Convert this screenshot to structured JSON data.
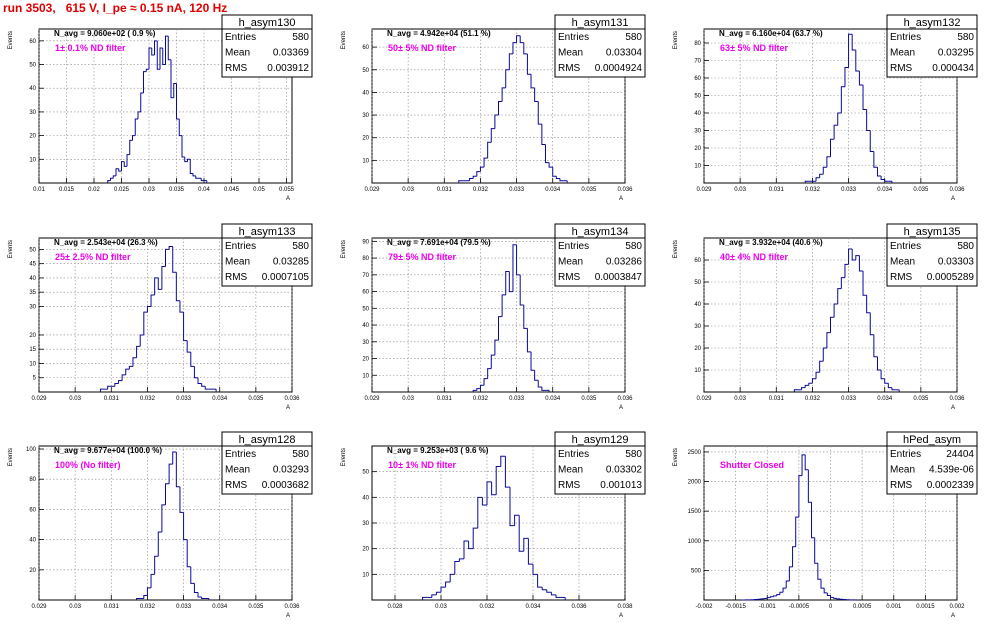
{
  "header": {
    "run_title": "run 3503,   615 V, I_pe ≈ 0.15 nA, 120 Hz"
  },
  "colors": {
    "histogram": "#0a0a9a",
    "filter_label": "#ee00ee",
    "title": "#e00000"
  },
  "chart_data": [
    {
      "type": "bar",
      "name": "h_asym130",
      "n_avg": "N_avg = 9.060e+02 ( 0.9 %)",
      "filter_label": "1± 0.1% ND filter",
      "stats": {
        "entries": "580",
        "mean": "0.03369",
        "rms": "0.003912"
      },
      "ylabel": "Events",
      "xlabel": "A",
      "xlim": [
        0.01,
        0.056
      ],
      "ylim": [
        0,
        65
      ],
      "xticks": [
        "0.01",
        "0.015",
        "0.02",
        "0.025",
        "0.03",
        "0.035",
        "0.04",
        "0.045",
        "0.05",
        "0.055"
      ],
      "yticks": [
        "10",
        "20",
        "30",
        "40",
        "50",
        "60"
      ],
      "bin_edges_start": 0.0225,
      "bin_width": 0.0005,
      "values": [
        1,
        2,
        3,
        6,
        5,
        9,
        7,
        12,
        18,
        20,
        27,
        30,
        38,
        47,
        48,
        57,
        54,
        60,
        48,
        57,
        50,
        62,
        52,
        36,
        42,
        27,
        20,
        11,
        9,
        10,
        4,
        3,
        2,
        2,
        1,
        1
      ]
    },
    {
      "type": "bar",
      "name": "h_asym131",
      "n_avg": "N_avg = 4.942e+04 (51.1 %)",
      "filter_label": "50± 5% ND filter",
      "stats": {
        "entries": "580",
        "mean": "0.03304",
        "rms": "0.0004924"
      },
      "ylabel": "Events",
      "xlabel": "A",
      "xlim": [
        0.029,
        0.036
      ],
      "ylim": [
        0,
        68
      ],
      "xticks": [
        "0.029",
        "0.03",
        "0.031",
        "0.032",
        "0.033",
        "0.034",
        "0.035",
        "0.036"
      ],
      "yticks": [
        "10",
        "20",
        "30",
        "40",
        "50",
        "60"
      ],
      "bin_edges_start": 0.0314,
      "bin_width": 0.0001,
      "values": [
        1,
        1,
        1,
        2,
        3,
        5,
        7,
        11,
        18,
        24,
        30,
        36,
        42,
        50,
        57,
        62,
        65,
        62,
        57,
        48,
        42,
        36,
        26,
        17,
        9,
        7,
        3,
        2,
        1,
        1
      ]
    },
    {
      "type": "bar",
      "name": "h_asym132",
      "n_avg": "N_avg = 6.160e+04 (63.7 %)",
      "filter_label": "63± 5% ND filter",
      "stats": {
        "entries": "580",
        "mean": "0.03295",
        "rms": "0.000434"
      },
      "ylabel": "Events",
      "xlabel": "A",
      "xlim": [
        0.029,
        0.036
      ],
      "ylim": [
        0,
        88
      ],
      "xticks": [
        "0.029",
        "0.03",
        "0.031",
        "0.032",
        "0.033",
        "0.034",
        "0.035",
        "0.036"
      ],
      "yticks": [
        "10",
        "20",
        "30",
        "40",
        "50",
        "60",
        "70",
        "80"
      ],
      "bin_edges_start": 0.0318,
      "bin_width": 0.0001,
      "values": [
        1,
        1,
        1,
        3,
        5,
        9,
        15,
        25,
        33,
        40,
        55,
        66,
        85,
        76,
        64,
        56,
        42,
        30,
        18,
        9,
        4,
        2,
        1,
        1
      ]
    },
    {
      "type": "bar",
      "name": "h_asym133",
      "n_avg": "N_avg = 2.543e+04 (26.3 %)",
      "filter_label": "25± 2.5% ND filter",
      "stats": {
        "entries": "580",
        "mean": "0.03285",
        "rms": "0.0007105"
      },
      "ylabel": "Events",
      "xlabel": "A",
      "xlim": [
        0.029,
        0.036
      ],
      "ylim": [
        0,
        54
      ],
      "xticks": [
        "0.029",
        "0.03",
        "0.031",
        "0.032",
        "0.033",
        "0.034",
        "0.035",
        "0.036"
      ],
      "yticks": [
        "5",
        "10",
        "15",
        "20",
        "30",
        "35",
        "40",
        "45",
        "50"
      ],
      "bin_edges_start": 0.0307,
      "bin_width": 0.0001,
      "values": [
        1,
        1,
        2,
        2,
        3,
        4,
        6,
        8,
        9,
        12,
        16,
        20,
        28,
        30,
        34,
        40,
        36,
        44,
        50,
        51,
        42,
        32,
        28,
        18,
        14,
        9,
        5,
        3,
        2,
        1,
        1,
        1
      ]
    },
    {
      "type": "bar",
      "name": "h_asym134",
      "n_avg": "N_avg = 7.691e+04 (79.5 %)",
      "filter_label": "79± 5% ND filter",
      "stats": {
        "entries": "580",
        "mean": "0.03286",
        "rms": "0.0003847"
      },
      "ylabel": "Events",
      "xlabel": "A",
      "xlim": [
        0.029,
        0.036
      ],
      "ylim": [
        0,
        92
      ],
      "xticks": [
        "0.029",
        "0.03",
        "0.031",
        "0.032",
        "0.033",
        "0.034",
        "0.035",
        "0.036"
      ],
      "yticks": [
        "10",
        "20",
        "30",
        "40",
        "50",
        "60",
        "70",
        "80",
        "90"
      ],
      "bin_edges_start": 0.0318,
      "bin_width": 0.0001,
      "values": [
        1,
        2,
        4,
        8,
        14,
        22,
        31,
        45,
        58,
        72,
        60,
        88,
        70,
        52,
        38,
        24,
        13,
        7,
        3,
        1,
        1
      ]
    },
    {
      "type": "bar",
      "name": "h_asym135",
      "n_avg": "N_avg = 3.932e+04 (40.6 %)",
      "filter_label": "40± 4% ND filter",
      "stats": {
        "entries": "580",
        "mean": "0.03303",
        "rms": "0.0005289"
      },
      "ylabel": "Events",
      "xlabel": "A",
      "xlim": [
        0.029,
        0.036
      ],
      "ylim": [
        0,
        70
      ],
      "xticks": [
        "0.029",
        "0.03",
        "0.031",
        "0.032",
        "0.033",
        "0.034",
        "0.035",
        "0.036"
      ],
      "yticks": [
        "10",
        "20",
        "30",
        "40",
        "50",
        "60"
      ],
      "bin_edges_start": 0.0315,
      "bin_width": 0.0001,
      "values": [
        1,
        1,
        2,
        3,
        4,
        6,
        9,
        14,
        20,
        27,
        34,
        40,
        47,
        52,
        58,
        65,
        60,
        62,
        55,
        44,
        36,
        26,
        16,
        10,
        6,
        4,
        2,
        1,
        1
      ]
    },
    {
      "type": "bar",
      "name": "h_asym128",
      "n_avg": "N_avg = 9.677e+04 (100.0 %)",
      "filter_label": "100% (No filter)",
      "stats": {
        "entries": "580",
        "mean": "0.03293",
        "rms": "0.0003682"
      },
      "ylabel": "Events",
      "xlabel": "A",
      "xlim": [
        0.029,
        0.036
      ],
      "ylim": [
        0,
        102
      ],
      "xticks": [
        "0.029",
        "0.03",
        "0.031",
        "0.032",
        "0.033",
        "0.034",
        "0.035",
        "0.036"
      ],
      "yticks": [
        "20",
        "40",
        "60",
        "80",
        "100"
      ],
      "bin_edges_start": 0.0317,
      "bin_width": 0.0001,
      "values": [
        1,
        1,
        3,
        8,
        17,
        29,
        45,
        63,
        77,
        90,
        98,
        75,
        58,
        40,
        22,
        11,
        5,
        2,
        1,
        1
      ]
    },
    {
      "type": "bar",
      "name": "h_asym129",
      "n_avg": "N_avg = 9.253e+03 ( 9.6 %)",
      "filter_label": "10± 1% ND filter",
      "stats": {
        "entries": "580",
        "mean": "0.03302",
        "rms": "0.001013"
      },
      "ylabel": "Events",
      "xlabel": "A",
      "xlim": [
        0.027,
        0.038
      ],
      "ylim": [
        0,
        60
      ],
      "xticks": [
        "0.028",
        "0.03",
        "0.032",
        "0.034",
        "0.036",
        "0.038"
      ],
      "yticks": [
        "10",
        "20",
        "30",
        "40",
        "50"
      ],
      "bin_edges_start": 0.0292,
      "bin_width": 0.0002,
      "values": [
        1,
        1,
        2,
        3,
        5,
        7,
        10,
        15,
        16,
        23,
        20,
        28,
        40,
        37,
        46,
        41,
        52,
        56,
        44,
        29,
        33,
        19,
        24,
        14,
        10,
        5,
        4,
        3,
        2,
        1,
        1
      ]
    },
    {
      "type": "bar",
      "name": "hPed_asym",
      "n_avg": "",
      "filter_label": "Shutter Closed",
      "stats": {
        "entries": "24404",
        "mean": "4.539e-06",
        "rms": "0.0002339"
      },
      "ylabel": "Events",
      "xlabel": "A",
      "xlim": [
        -0.002,
        0.002
      ],
      "ylim": [
        0,
        2600
      ],
      "xticks": [
        "-0.002",
        "-0.0015",
        "-0.001",
        "-0.0005",
        "0",
        "0.0005",
        "0.001",
        "0.0015",
        "0.002"
      ],
      "yticks": [
        "500",
        "1000",
        "1500",
        "2000",
        "2500"
      ],
      "bin_edges_start": -0.0014,
      "bin_width": 5e-05,
      "values": [
        1,
        2,
        3,
        5,
        8,
        12,
        18,
        25,
        40,
        55,
        70,
        90,
        130,
        200,
        320,
        560,
        900,
        1400,
        2100,
        2450,
        2200,
        1650,
        1050,
        620,
        350,
        200,
        120,
        75,
        45,
        28,
        18,
        12,
        8,
        5,
        3,
        2
      ]
    }
  ]
}
